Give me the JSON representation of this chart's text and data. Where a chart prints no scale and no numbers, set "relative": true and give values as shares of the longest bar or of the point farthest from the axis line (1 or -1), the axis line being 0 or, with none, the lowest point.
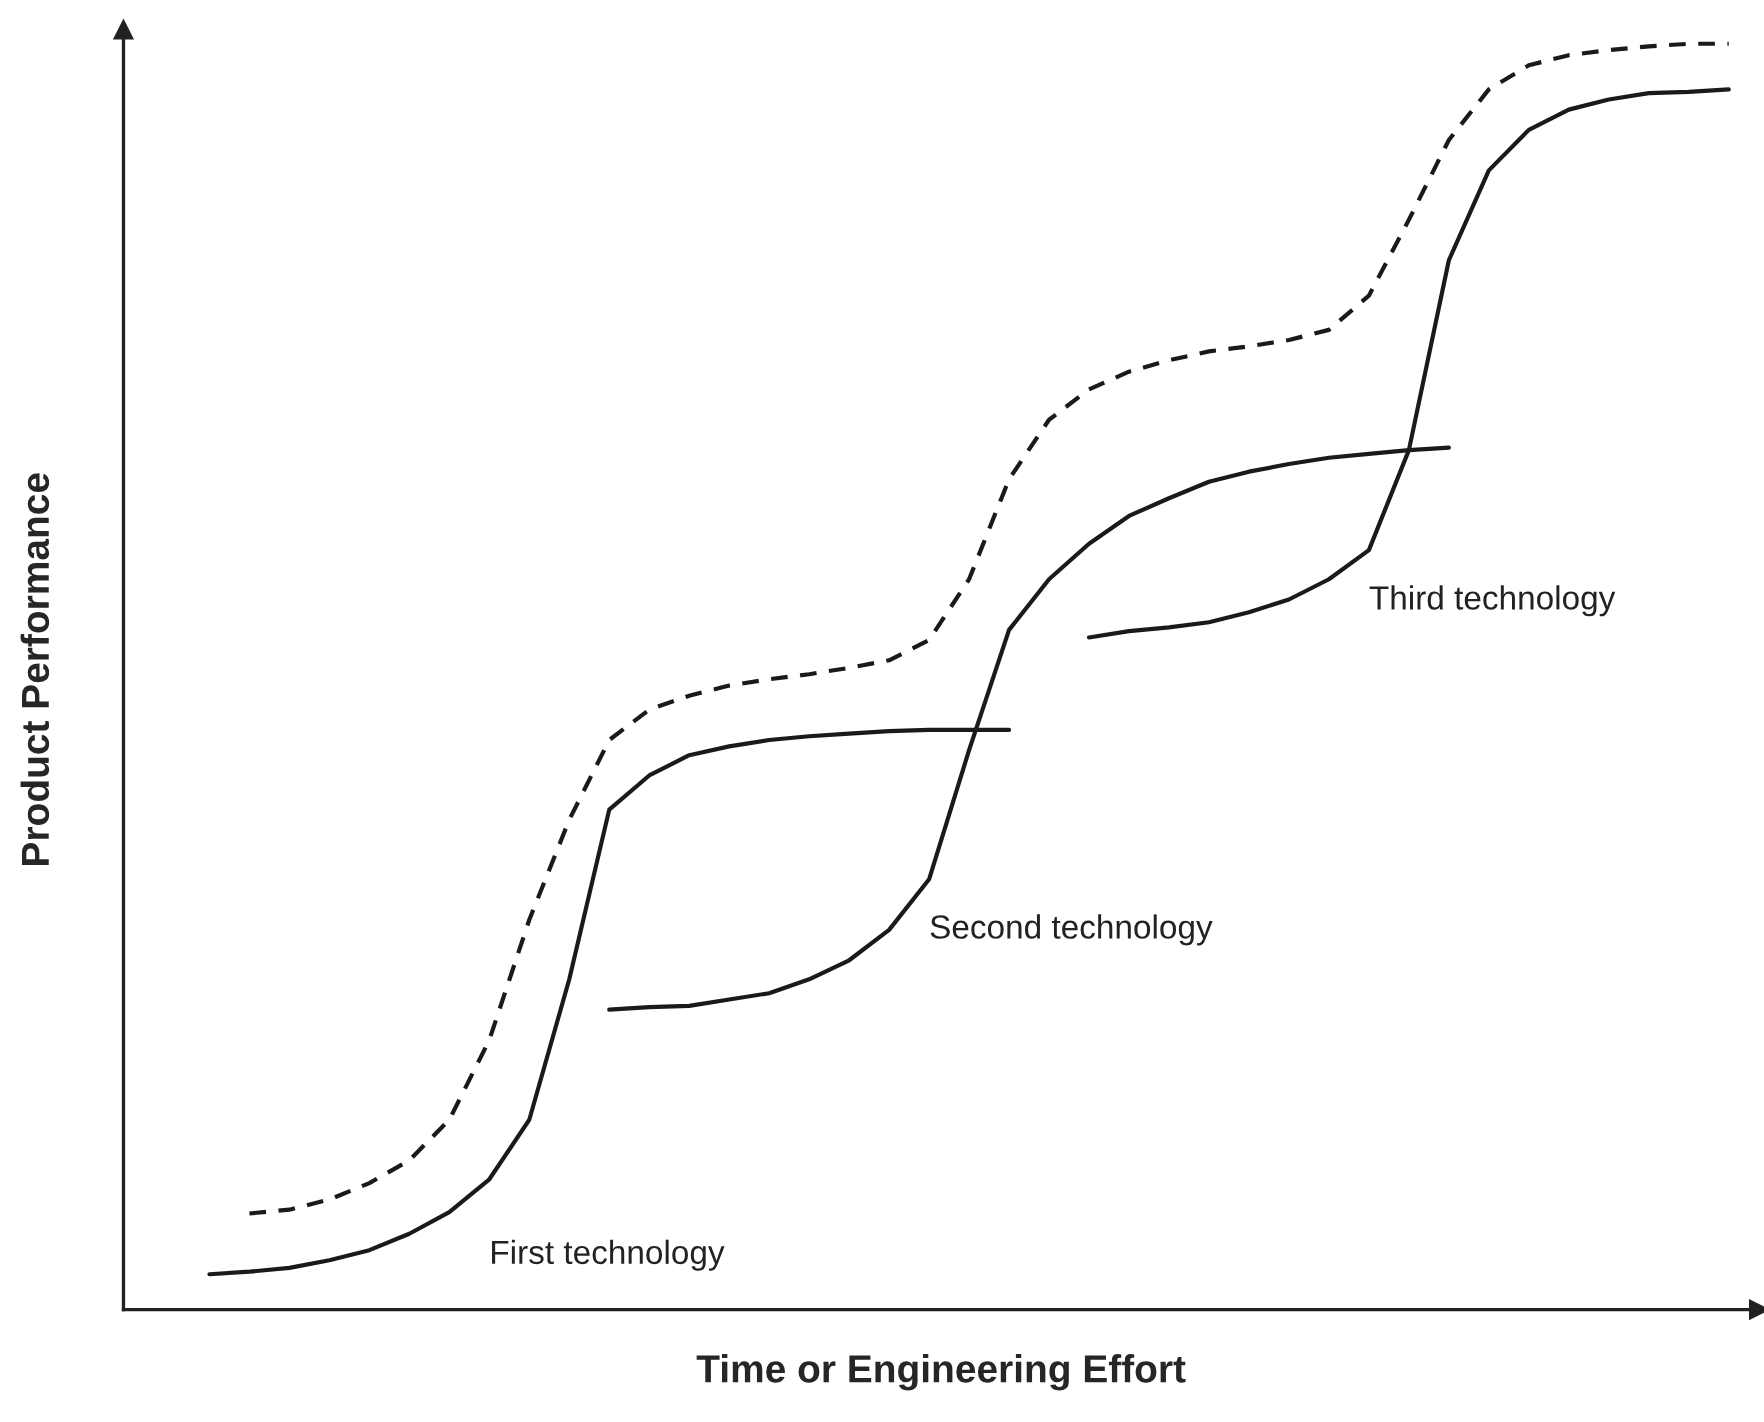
{
  "chart_data": {
    "type": "line",
    "relative": true,
    "xlabel": "Time or Engineering Effort",
    "ylabel": "Product Performance",
    "categories": [
      null,
      null,
      null,
      null,
      null,
      null,
      null,
      null,
      null,
      null,
      null,
      null,
      null,
      null,
      null,
      null,
      null,
      null,
      null,
      null,
      null,
      null,
      null,
      null,
      null,
      null,
      null,
      null,
      null,
      null,
      null,
      null,
      null,
      null,
      null,
      null,
      null,
      null,
      null
    ],
    "marker": "none",
    "series": [
      {
        "name": "First technology",
        "color": "#1a1a1a",
        "line_style": "solid",
        "values": [
          0.028,
          0.03,
          0.033,
          0.039,
          0.047,
          0.06,
          0.077,
          0.103,
          0.15,
          0.261,
          0.395,
          0.422,
          0.438,
          0.445,
          0.45,
          0.453,
          0.455,
          0.457,
          0.458,
          0.458,
          0.458,
          null,
          null,
          null,
          null,
          null,
          null,
          null,
          null,
          null,
          null,
          null,
          null,
          null,
          null,
          null,
          null,
          null,
          null
        ]
      },
      {
        "name": "Second technology",
        "color": "#1a1a1a",
        "line_style": "solid",
        "values": [
          null,
          null,
          null,
          null,
          null,
          null,
          null,
          null,
          null,
          null,
          0.237,
          0.239,
          0.24,
          0.245,
          0.25,
          0.261,
          0.276,
          0.3,
          0.34,
          0.442,
          0.537,
          0.577,
          0.605,
          0.627,
          0.641,
          0.654,
          0.662,
          0.668,
          0.673,
          0.676,
          0.679,
          0.681,
          null,
          null,
          null,
          null,
          null,
          null,
          null
        ]
      },
      {
        "name": "Third technology",
        "color": "#1a1a1a",
        "line_style": "solid",
        "values": [
          null,
          null,
          null,
          null,
          null,
          null,
          null,
          null,
          null,
          null,
          null,
          null,
          null,
          null,
          null,
          null,
          null,
          null,
          null,
          null,
          null,
          null,
          0.531,
          0.536,
          0.539,
          0.543,
          0.551,
          0.561,
          0.577,
          0.6,
          0.679,
          0.829,
          0.9,
          0.932,
          0.948,
          0.956,
          0.961,
          0.962,
          0.964
        ]
      },
      {
        "color": "#1a1a1a",
        "line_style": "dashed",
        "values": [
          null,
          0.076,
          0.079,
          0.087,
          0.1,
          0.118,
          0.15,
          0.213,
          0.308,
          0.387,
          0.45,
          0.474,
          0.485,
          0.493,
          0.498,
          0.502,
          0.507,
          0.513,
          0.529,
          0.577,
          0.656,
          0.703,
          0.727,
          0.741,
          0.75,
          0.757,
          0.761,
          0.766,
          0.774,
          0.801,
          0.861,
          0.924,
          0.964,
          0.983,
          0.991,
          0.995,
          0.998,
          1.0,
          1.0
        ]
      }
    ]
  }
}
